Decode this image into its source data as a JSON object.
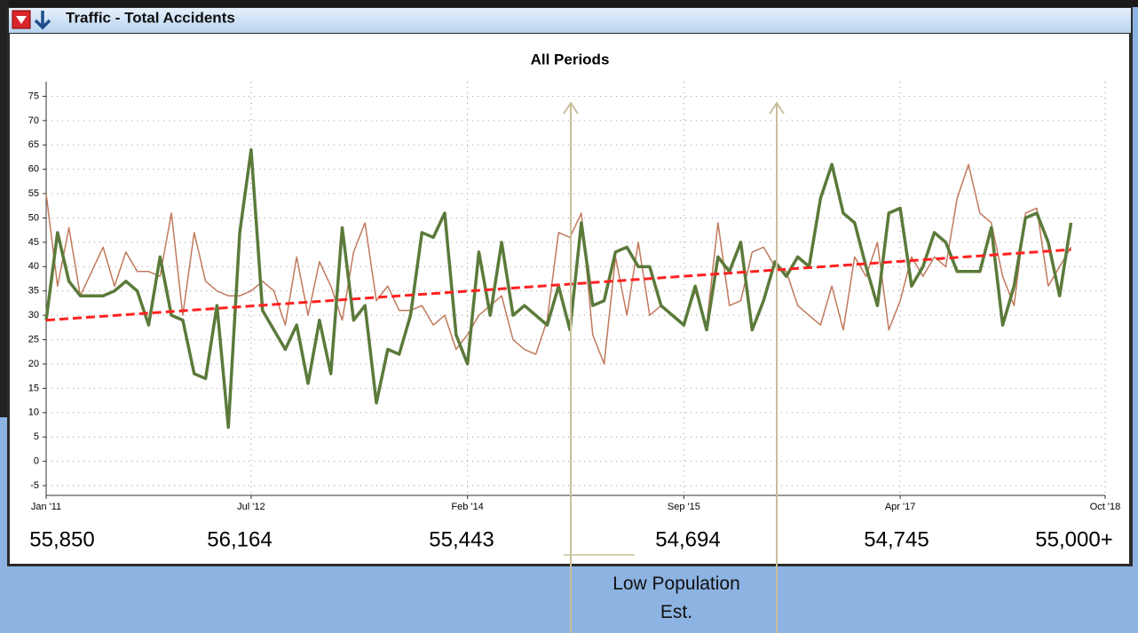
{
  "window_title": "Traffic - Total Accidents",
  "chart_data": {
    "type": "line",
    "title": "All Periods",
    "x": [
      "2011-01",
      "2011-02",
      "2011-03",
      "2011-04",
      "2011-05",
      "2011-06",
      "2011-07",
      "2011-08",
      "2011-09",
      "2011-10",
      "2011-11",
      "2011-12",
      "2012-01",
      "2012-02",
      "2012-03",
      "2012-04",
      "2012-05",
      "2012-06",
      "2012-07",
      "2012-08",
      "2012-09",
      "2012-10",
      "2012-11",
      "2012-12",
      "2013-01",
      "2013-02",
      "2013-03",
      "2013-04",
      "2013-05",
      "2013-06",
      "2013-07",
      "2013-08",
      "2013-09",
      "2013-10",
      "2013-11",
      "2013-12",
      "2014-01",
      "2014-02",
      "2014-03",
      "2014-04",
      "2014-05",
      "2014-06",
      "2014-07",
      "2014-08",
      "2014-09",
      "2014-10",
      "2014-11",
      "2014-12",
      "2015-01",
      "2015-02",
      "2015-03",
      "2015-04",
      "2015-05",
      "2015-06",
      "2015-07",
      "2015-08",
      "2015-09",
      "2015-10",
      "2015-11",
      "2015-12",
      "2016-01",
      "2016-02",
      "2016-03",
      "2016-04",
      "2016-05",
      "2016-06",
      "2016-07",
      "2016-08",
      "2016-09",
      "2016-10",
      "2016-11",
      "2016-12",
      "2017-01",
      "2017-02",
      "2017-03",
      "2017-04",
      "2017-05",
      "2017-06",
      "2017-07",
      "2017-08",
      "2017-09",
      "2017-10",
      "2017-11",
      "2017-12",
      "2018-01",
      "2018-02",
      "2018-03",
      "2018-04",
      "2018-05",
      "2018-06",
      "2018-07"
    ],
    "series": [
      {
        "color": "#c07a5c",
        "width": 1.5,
        "values": [
          55,
          36,
          48,
          34,
          39,
          44,
          36,
          43,
          39,
          39,
          38,
          51,
          30,
          47,
          37,
          35,
          34,
          34,
          35,
          37,
          35,
          28,
          42,
          30,
          41,
          36,
          29,
          43,
          49,
          33,
          36,
          31,
          31,
          32,
          28,
          30,
          23,
          26,
          30,
          32,
          34,
          25,
          23,
          22,
          29,
          47,
          46,
          51,
          26,
          20,
          42,
          30,
          45,
          30,
          32,
          30,
          28,
          35,
          28,
          49,
          32,
          33,
          43,
          44,
          40,
          39,
          32,
          30,
          28,
          36,
          27,
          42,
          38,
          45,
          27,
          33,
          42,
          38,
          42,
          40,
          54,
          61,
          51,
          49,
          38,
          32,
          51,
          52,
          36,
          40,
          44
        ]
      },
      {
        "color": "#5b7a3a",
        "width": 3.5,
        "values": [
          29,
          47,
          37,
          34,
          34,
          34,
          35,
          37,
          35,
          28,
          42,
          30,
          29,
          18,
          17,
          32,
          7,
          47,
          64,
          31,
          27,
          23,
          28,
          16,
          29,
          18,
          48,
          29,
          32,
          12,
          23,
          22,
          30,
          47,
          46,
          51,
          26,
          20,
          43,
          30,
          45,
          30,
          32,
          30,
          28,
          36,
          27,
          49,
          32,
          33,
          43,
          44,
          40,
          40,
          32,
          30,
          28,
          36,
          27,
          42,
          39,
          45,
          27,
          33,
          41,
          38,
          42,
          40,
          54,
          61,
          51,
          49,
          40,
          32,
          51,
          52,
          36,
          40,
          47,
          45,
          39,
          39,
          39,
          48,
          28,
          36,
          50,
          51,
          45,
          34,
          49
        ]
      }
    ],
    "trend": {
      "color": "#ff2020",
      "x": [
        "2011-01",
        "2018-07"
      ],
      "values": [
        29,
        43.5
      ]
    },
    "xlim": [
      "2011-01",
      "2018-10"
    ],
    "xticks": [
      {
        "value": "2011-01",
        "label": "Jan '11"
      },
      {
        "value": "2012-07",
        "label": "Jul '12"
      },
      {
        "value": "2014-02",
        "label": "Feb '14"
      },
      {
        "value": "2015-09",
        "label": "Sep '15"
      },
      {
        "value": "2017-04",
        "label": "Apr '17"
      },
      {
        "value": "2018-10",
        "label": "Oct '18"
      }
    ],
    "ylim": [
      -7,
      78
    ],
    "yticks": [
      -5,
      0,
      5,
      10,
      15,
      20,
      25,
      30,
      35,
      40,
      45,
      50,
      55,
      60,
      65,
      70,
      75
    ],
    "grid": true,
    "annotations": {
      "population": [
        "55,850",
        "56,164",
        "55,443",
        "54,694",
        "54,745",
        "55,000+"
      ],
      "note": "Low Population Est."
    }
  }
}
